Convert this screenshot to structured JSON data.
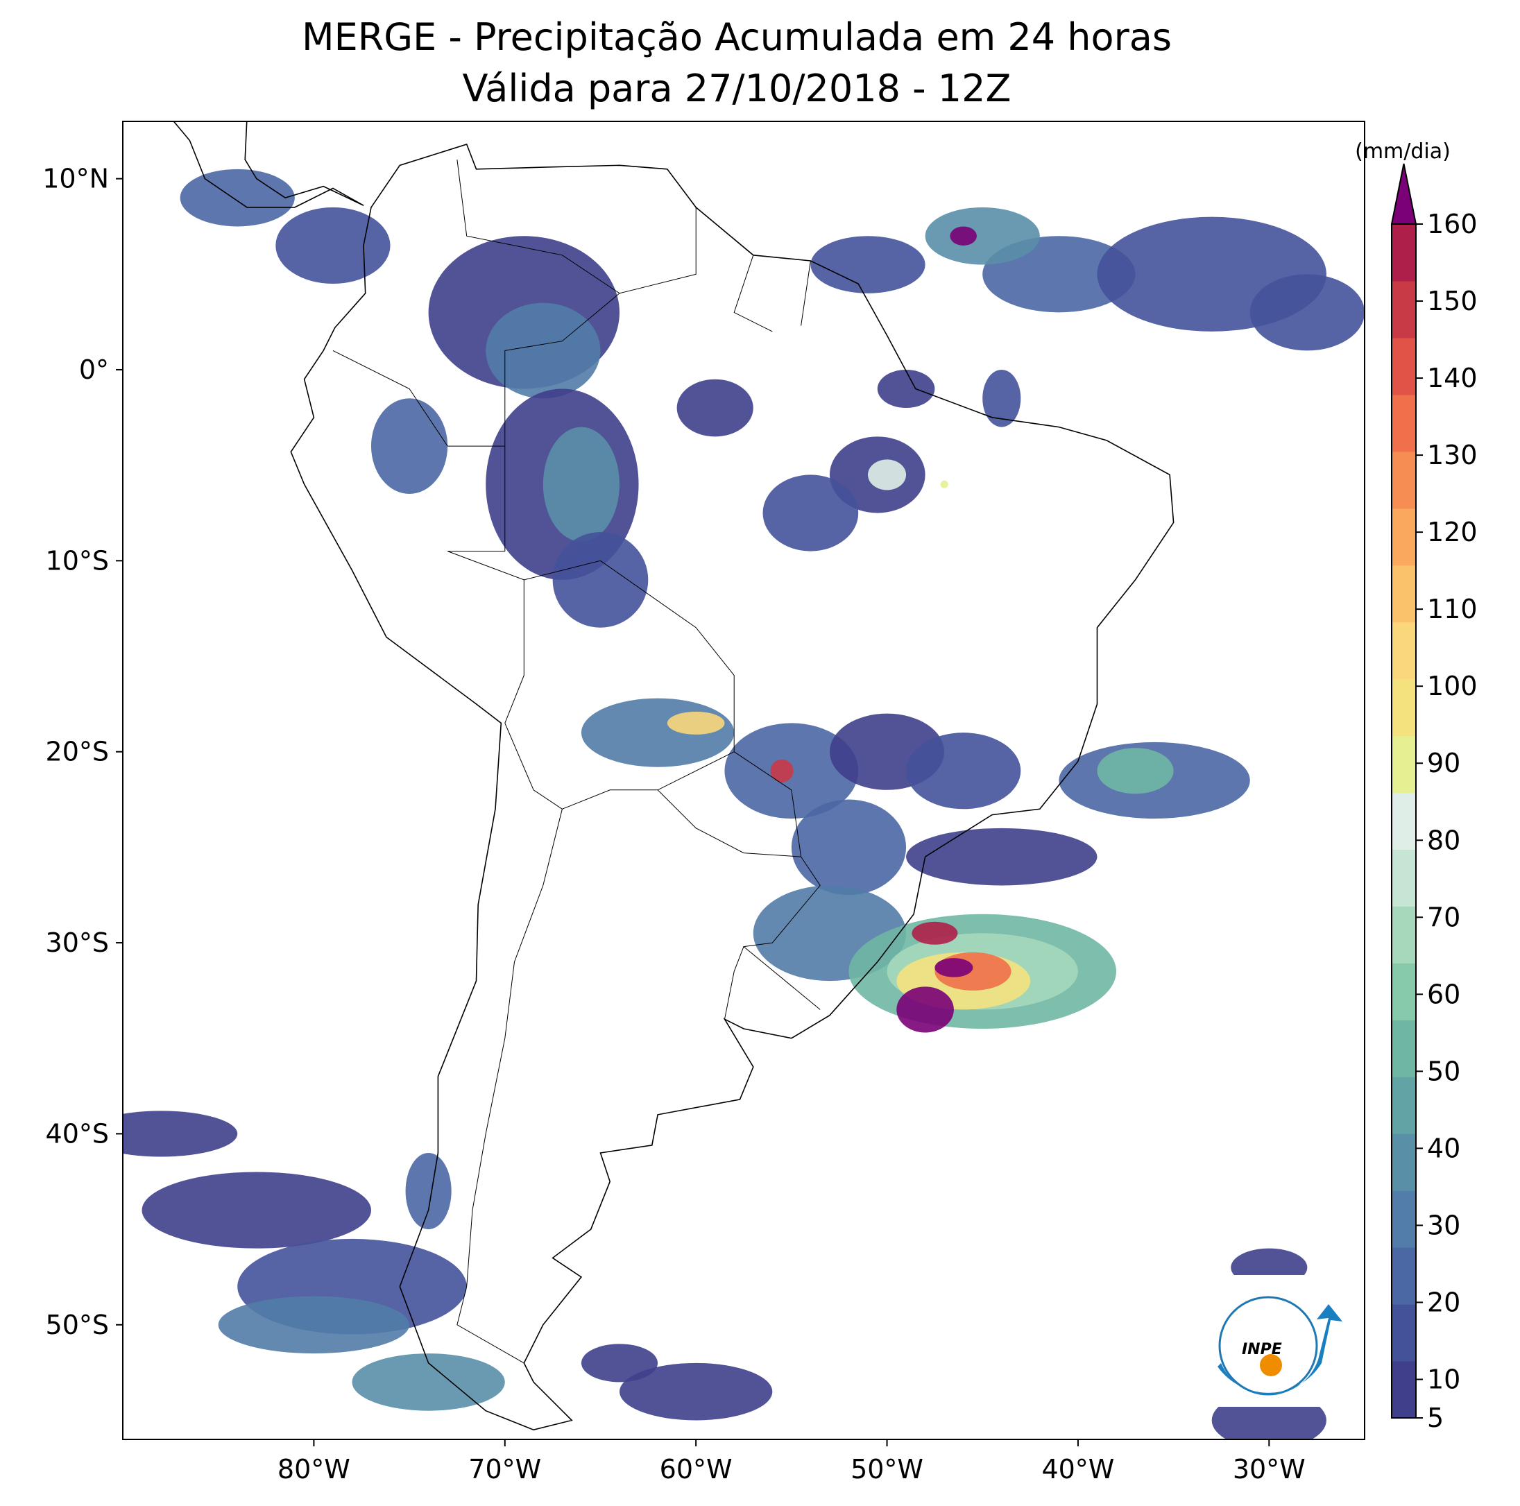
{
  "title": "MERGE - Precipitação Acumulada em 24 horas",
  "subtitle": "Válida para 27/10/2018 - 12Z",
  "map": {
    "xlim": [
      -90,
      -25
    ],
    "ylim": [
      -56,
      13
    ],
    "xticks": [
      {
        "value": -80,
        "label": "80°W"
      },
      {
        "value": -70,
        "label": "70°W"
      },
      {
        "value": -60,
        "label": "60°W"
      },
      {
        "value": -50,
        "label": "50°W"
      },
      {
        "value": -40,
        "label": "40°W"
      },
      {
        "value": -30,
        "label": "30°W"
      }
    ],
    "yticks": [
      {
        "value": 10,
        "label": "10°N"
      },
      {
        "value": 0,
        "label": "0°"
      },
      {
        "value": -10,
        "label": "10°S"
      },
      {
        "value": -20,
        "label": "20°S"
      },
      {
        "value": -30,
        "label": "30°S"
      },
      {
        "value": -40,
        "label": "40°S"
      },
      {
        "value": -50,
        "label": "50°S"
      }
    ]
  },
  "colorbar": {
    "label": "(mm/dia)",
    "lim": [
      5,
      160
    ],
    "ticks": [
      5,
      10,
      20,
      30,
      40,
      50,
      60,
      70,
      80,
      90,
      100,
      110,
      120,
      130,
      140,
      150,
      160
    ],
    "colors": [
      "#3f3f8c",
      "#44529a",
      "#4b67a4",
      "#527ca9",
      "#5a8fa8",
      "#62a3a6",
      "#6fb7a4",
      "#86c9ab",
      "#a6d8bb",
      "#c6e5d4",
      "#dfeee6",
      "#e6ef92",
      "#f4e27f",
      "#fad77c",
      "#fbc26c",
      "#f9a85e",
      "#f68d52",
      "#ef704a",
      "#e05346",
      "#c93a47",
      "#ae2049",
      "#7a0177"
    ]
  },
  "logo": "INPE"
}
